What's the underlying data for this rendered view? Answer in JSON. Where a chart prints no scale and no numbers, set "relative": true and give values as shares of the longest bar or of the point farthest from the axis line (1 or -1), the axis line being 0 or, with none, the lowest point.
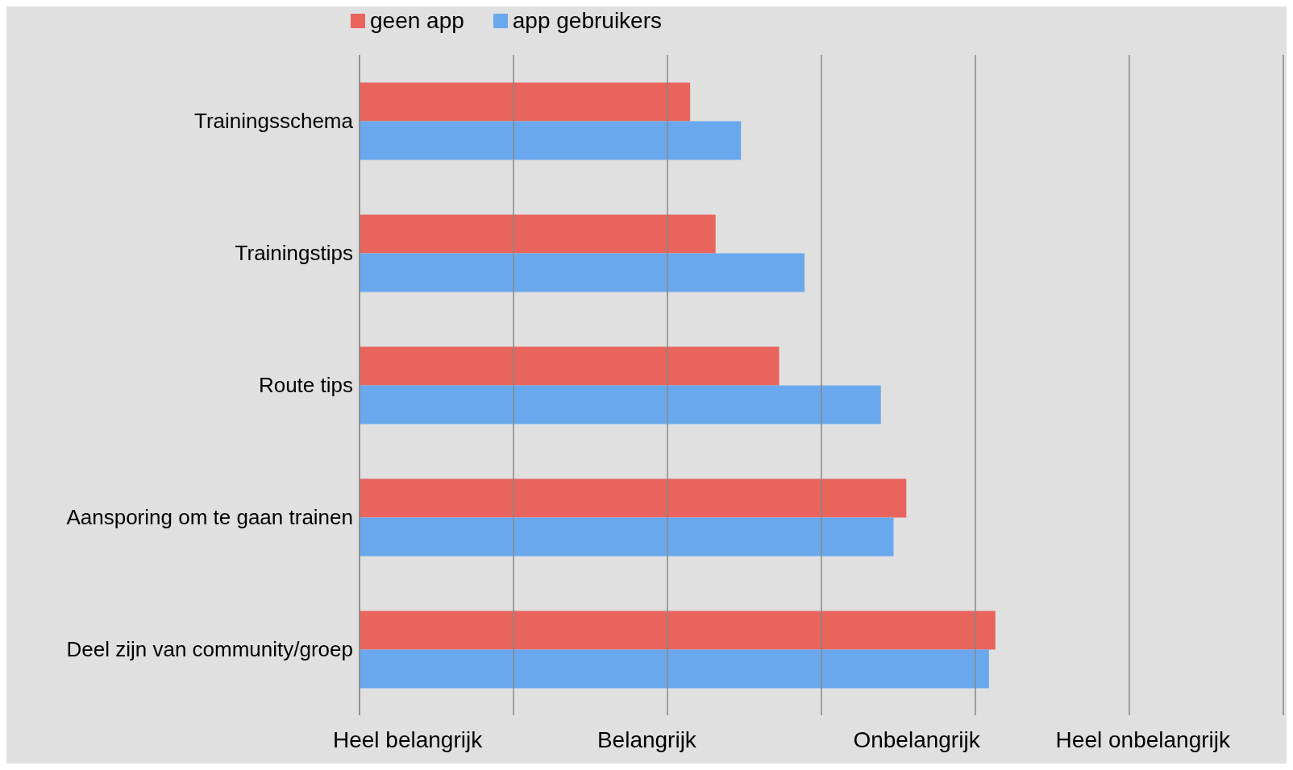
{
  "chart_data": {
    "type": "bar",
    "orientation": "horizontal",
    "legend": "top",
    "grid": true,
    "relative": true,
    "categories": [
      "Trainingsschema",
      "Trainingstips",
      "Route tips",
      "Aansporing om te gaan trainen",
      "Deel zijn van community/groep"
    ],
    "series": [
      {
        "name": "geen app",
        "color": "#e8645c",
        "values": [
          0.52,
          0.56,
          0.66,
          0.86,
          1.0
        ]
      },
      {
        "name": "app gebruikers",
        "color": "#6aa8ee",
        "values": [
          0.6,
          0.7,
          0.82,
          0.84,
          0.99
        ]
      }
    ],
    "annotations": [
      "Heel belangrijk",
      "Belangrijk",
      "Onbelangrijk",
      "Heel onbelangrijk"
    ]
  }
}
